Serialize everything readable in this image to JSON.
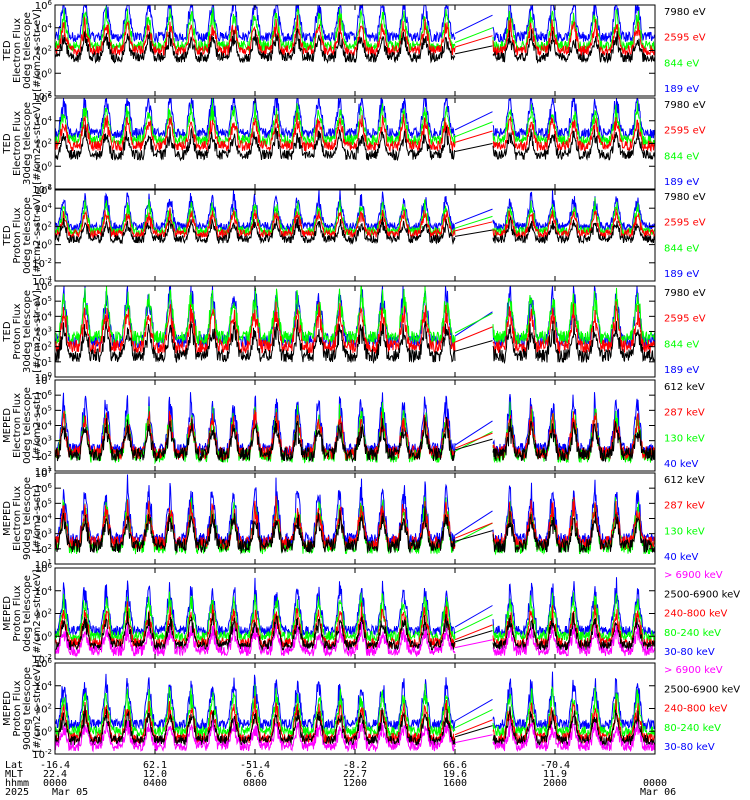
{
  "chart_data": {
    "type": "line",
    "x_range_hours": [
      0,
      24
    ],
    "x_ticks_hours": [
      0,
      4,
      8,
      12,
      16,
      20,
      24
    ],
    "data_gap_hours": [
      16.0,
      17.5
    ],
    "colors": {
      "black": "#000000",
      "red": "#ff0000",
      "green": "#00ff00",
      "blue": "#0000ff",
      "magenta": "#ff00ff"
    },
    "panels": [
      {
        "ylabel": [
          "TED",
          "Electron Flux",
          "0deg telescope",
          "[#/cm2-s-str-eV]"
        ],
        "ylim_exp": [
          -2,
          6
        ],
        "ytick_labels": [
          "10^-2",
          "10^0",
          "10^2",
          "10^4",
          "10^6"
        ],
        "legend": [
          {
            "label": "7980 eV",
            "color": "#000000"
          },
          {
            "label": "2595 eV",
            "color": "#ff0000"
          },
          {
            "label": "844 eV",
            "color": "#00ff00"
          },
          {
            "label": "189 eV",
            "color": "#0000ff"
          }
        ],
        "series_levels_exp": [
          1.4,
          2.0,
          2.4,
          3.2
        ]
      },
      {
        "ylabel": [
          "TED",
          "Electron Flux",
          "30deg telescope",
          "[#/cm2-s-str-eV]"
        ],
        "ylim_exp": [
          -2,
          6
        ],
        "ytick_labels": [
          "10^-2",
          "10^0",
          "10^2",
          "10^4",
          "10^6"
        ],
        "legend": [
          {
            "label": "7980 eV",
            "color": "#000000"
          },
          {
            "label": "2595 eV",
            "color": "#ff0000"
          },
          {
            "label": "844 eV",
            "color": "#00ff00"
          },
          {
            "label": "189 eV",
            "color": "#0000ff"
          }
        ],
        "series_levels_exp": [
          1.0,
          1.8,
          2.3,
          2.9
        ]
      },
      {
        "ylabel": [
          "TED",
          "Proton Flux",
          "0deg telescope",
          "[#/cm2-s-str-eV]"
        ],
        "ylim_exp": [
          -4,
          6
        ],
        "ytick_labels": [
          "10^-4",
          "10^-2",
          "10^0",
          "10^2",
          "10^4",
          "10^6"
        ],
        "legend": [
          {
            "label": "7980 eV",
            "color": "#000000"
          },
          {
            "label": "2595 eV",
            "color": "#ff0000"
          },
          {
            "label": "844 eV",
            "color": "#00ff00"
          },
          {
            "label": "189 eV",
            "color": "#0000ff"
          }
        ],
        "series_levels_exp": [
          0.6,
          1.2,
          1.5,
          2.0
        ]
      },
      {
        "ylabel": [
          "TED",
          "Proton Flux",
          "30deg telescope",
          "[#/cm2-s-str-eV]"
        ],
        "ylim_exp": [
          0,
          6
        ],
        "ytick_labels": [
          "10^0",
          "10^1",
          "10^2",
          "10^3",
          "10^4",
          "10^5",
          "10^6"
        ],
        "legend": [
          {
            "label": "7980 eV",
            "color": "#000000"
          },
          {
            "label": "2595 eV",
            "color": "#ff0000"
          },
          {
            "label": "844 eV",
            "color": "#00ff00"
          },
          {
            "label": "189 eV",
            "color": "#0000ff"
          }
        ],
        "series_levels_exp": [
          1.4,
          2.0,
          2.6,
          2.4
        ]
      },
      {
        "ylabel": [
          "MEPED",
          "Electron Flux",
          "0deg telescope",
          "[#/cm2-s-str]"
        ],
        "ylim_exp": [
          1,
          7
        ],
        "ytick_labels": [
          "10^1",
          "10^2",
          "10^3",
          "10^4",
          "10^5",
          "10^6",
          "10^7"
        ],
        "legend": [
          {
            "label": "612 keV",
            "color": "#000000"
          },
          {
            "label": "287 keV",
            "color": "#ff0000"
          },
          {
            "label": "130 keV",
            "color": "#00ff00"
          },
          {
            "label": "40 keV",
            "color": "#0000ff"
          }
        ],
        "series_levels_exp": [
          2.1,
          2.2,
          2.0,
          2.4
        ]
      },
      {
        "ylabel": [
          "MEPED",
          "Electron Flux",
          "90deg telescope",
          "[#/cm2-s-str]"
        ],
        "ylim_exp": [
          1,
          7
        ],
        "ytick_labels": [
          "10^1",
          "10^2",
          "10^3",
          "10^4",
          "10^5",
          "10^6",
          "10^7"
        ],
        "legend": [
          {
            "label": "612 keV",
            "color": "#000000"
          },
          {
            "label": "287 keV",
            "color": "#ff0000"
          },
          {
            "label": "130 keV",
            "color": "#00ff00"
          },
          {
            "label": "40 keV",
            "color": "#0000ff"
          }
        ],
        "series_levels_exp": [
          2.2,
          2.4,
          2.1,
          2.6
        ]
      },
      {
        "ylabel": [
          "MEPED",
          "Proton Flux",
          "0deg telescope",
          "[#/cm2-s-str-keV]"
        ],
        "ylim_exp": [
          -2,
          6
        ],
        "ytick_labels": [
          "10^-2",
          "10^0",
          "10^2",
          "10^4",
          "10^6"
        ],
        "legend": [
          {
            "label": "> 6900 keV",
            "color": "#ff00ff"
          },
          {
            "label": "2500-6900 keV",
            "color": "#000000"
          },
          {
            "label": "240-800 keV",
            "color": "#ff0000"
          },
          {
            "label": "80-240 keV",
            "color": "#00ff00"
          },
          {
            "label": "30-80 keV",
            "color": "#0000ff"
          }
        ],
        "series_levels_exp": [
          -1.3,
          -0.8,
          -0.6,
          0.0,
          0.5
        ]
      },
      {
        "ylabel": [
          "MEPED",
          "Proton Flux",
          "90deg telescope",
          "[#/cm2-s-str-keV]"
        ],
        "ylim_exp": [
          -2,
          6
        ],
        "ytick_labels": [
          "10^-2",
          "10^0",
          "10^2",
          "10^4",
          "10^6"
        ],
        "legend": [
          {
            "label": "> 6900 keV",
            "color": "#ff00ff"
          },
          {
            "label": "2500-6900 keV",
            "color": "#000000"
          },
          {
            "label": "240-800 keV",
            "color": "#ff0000"
          },
          {
            "label": "80-240 keV",
            "color": "#00ff00"
          },
          {
            "label": "30-80 keV",
            "color": "#0000ff"
          }
        ],
        "series_levels_exp": [
          -1.3,
          -0.8,
          -0.6,
          0.0,
          0.6
        ]
      }
    ],
    "bottom_axis": {
      "row_labels": [
        "Lat",
        "MLT",
        "hhmm",
        "2025"
      ],
      "lat": [
        "-16.4",
        "62.1",
        "-51.4",
        "-8.2",
        "66.6",
        "-70.4",
        ""
      ],
      "mlt": [
        "22.4",
        "12.0",
        "6.6",
        "22.7",
        "19.6",
        "11.9",
        ""
      ],
      "hhmm": [
        "0000",
        "0400",
        "0800",
        "1200",
        "1600",
        "2000",
        "0000"
      ],
      "date_start": "Mar 05",
      "date_end": "Mar 06"
    }
  }
}
